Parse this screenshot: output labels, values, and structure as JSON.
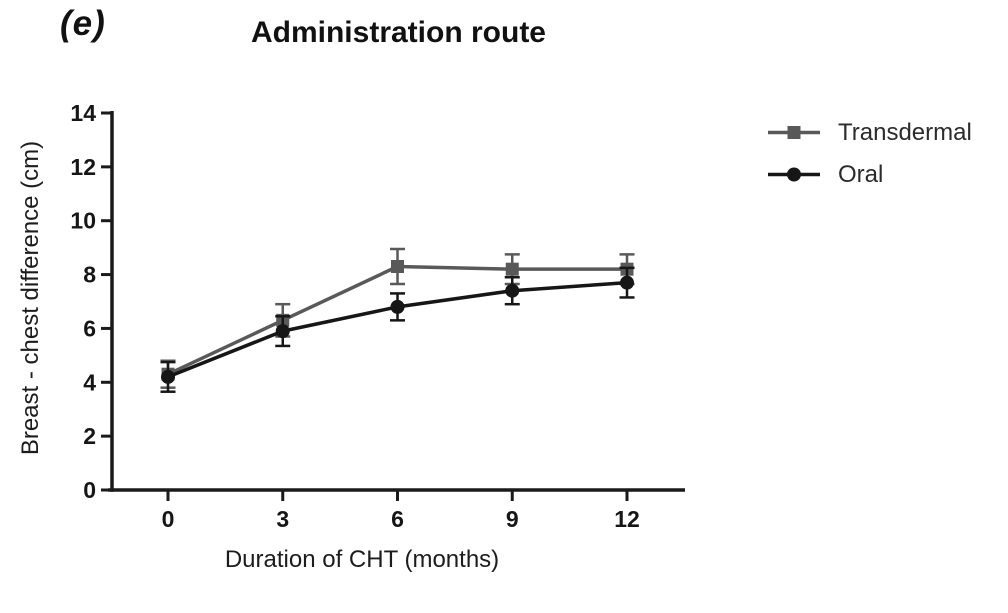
{
  "panel_label": "(e)",
  "title": "Administration route",
  "colors": {
    "background": "#ffffff",
    "axis": "#1a1a1a",
    "transdermal": "#595959",
    "oral": "#161616"
  },
  "legend": {
    "position": "right",
    "items": [
      {
        "label": "Transdermal",
        "marker": "square",
        "color": "#595959"
      },
      {
        "label": "Oral",
        "marker": "circle",
        "color": "#161616"
      }
    ]
  },
  "chart_data": {
    "type": "line",
    "title": "Administration route",
    "panel": "(e)",
    "xlabel": "Duration of CHT (months)",
    "ylabel": "Breast - chest difference (cm)",
    "x": [
      0,
      3,
      6,
      9,
      12
    ],
    "xticks": [
      0,
      3,
      6,
      9,
      12
    ],
    "yticks": [
      0,
      2,
      4,
      6,
      8,
      10,
      12,
      14
    ],
    "ylim": [
      0,
      14
    ],
    "grid": false,
    "error_bars": true,
    "legend_position": "right",
    "series": [
      {
        "name": "Transdermal",
        "marker": "square",
        "color": "#595959",
        "values": [
          4.3,
          6.3,
          8.3,
          8.2,
          8.2
        ],
        "errors": [
          0.5,
          0.6,
          0.65,
          0.55,
          0.55
        ]
      },
      {
        "name": "Oral",
        "marker": "circle",
        "color": "#161616",
        "values": [
          4.2,
          5.9,
          6.8,
          7.4,
          7.7
        ],
        "errors": [
          0.55,
          0.55,
          0.5,
          0.5,
          0.55
        ]
      }
    ]
  }
}
